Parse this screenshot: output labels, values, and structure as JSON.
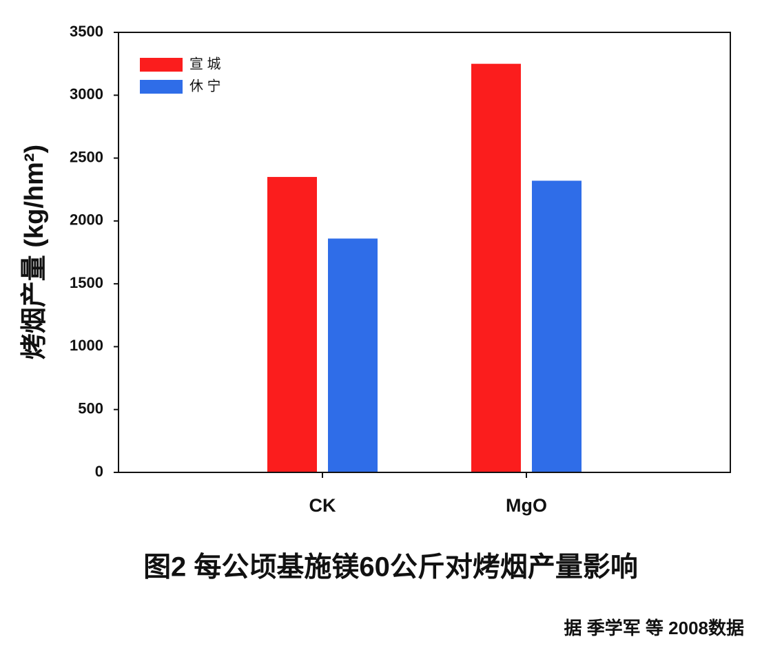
{
  "chart_data": {
    "type": "bar",
    "y_label": "烤烟产量 (kg/hm²)",
    "caption": "图2 每公顷基施镁60公斤对烤烟产量影响",
    "source": "据 季学军 等 2008数据",
    "categories": [
      "CK",
      "MgO"
    ],
    "series": [
      {
        "name": "宣 城",
        "color": "#fb1d1d",
        "values": [
          2350,
          3250
        ]
      },
      {
        "name": "休 宁",
        "color": "#2f6de8",
        "values": [
          1860,
          2320
        ]
      }
    ],
    "ylim": [
      0,
      3500
    ],
    "yticks": [
      0,
      500,
      1000,
      1500,
      2000,
      2500,
      3000,
      3500
    ],
    "legend": "upper left"
  }
}
